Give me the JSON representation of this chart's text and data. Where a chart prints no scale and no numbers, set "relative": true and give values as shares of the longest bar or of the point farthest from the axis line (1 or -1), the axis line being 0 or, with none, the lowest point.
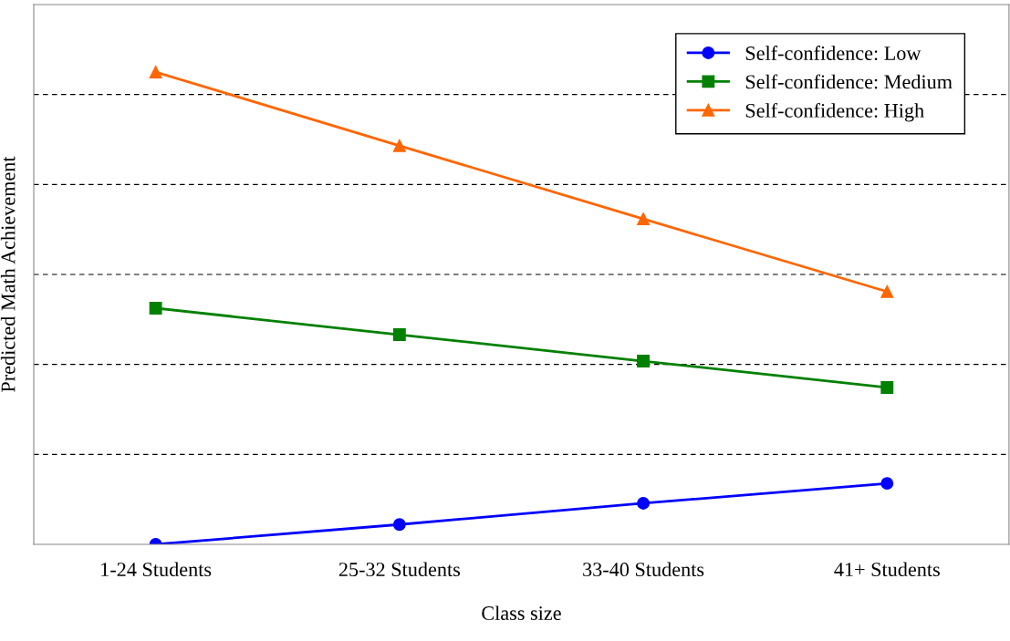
{
  "chart_data": {
    "type": "line",
    "relative": true,
    "xlabel": "Class size",
    "ylabel": "Predicted Math Achievement",
    "categories": [
      "1-24 Students",
      "25-32 Students",
      "33-40 Students",
      "41+ Students"
    ],
    "series": [
      {
        "name": "Self-confidence: Low",
        "color": "#0000ff",
        "marker": "circle",
        "values": [
          0,
          0.042,
          0.087,
          0.129
        ]
      },
      {
        "name": "Self-confidence: Medium",
        "color": "#008000",
        "marker": "square",
        "values": [
          0.5,
          0.444,
          0.388,
          0.332
        ]
      },
      {
        "name": "Self-confidence: High",
        "color": "#ff6600",
        "marker": "triangle",
        "values": [
          1,
          0.844,
          0.689,
          0.535
        ]
      }
    ],
    "grid": "y",
    "legend": "top right",
    "line_style": "solid"
  }
}
